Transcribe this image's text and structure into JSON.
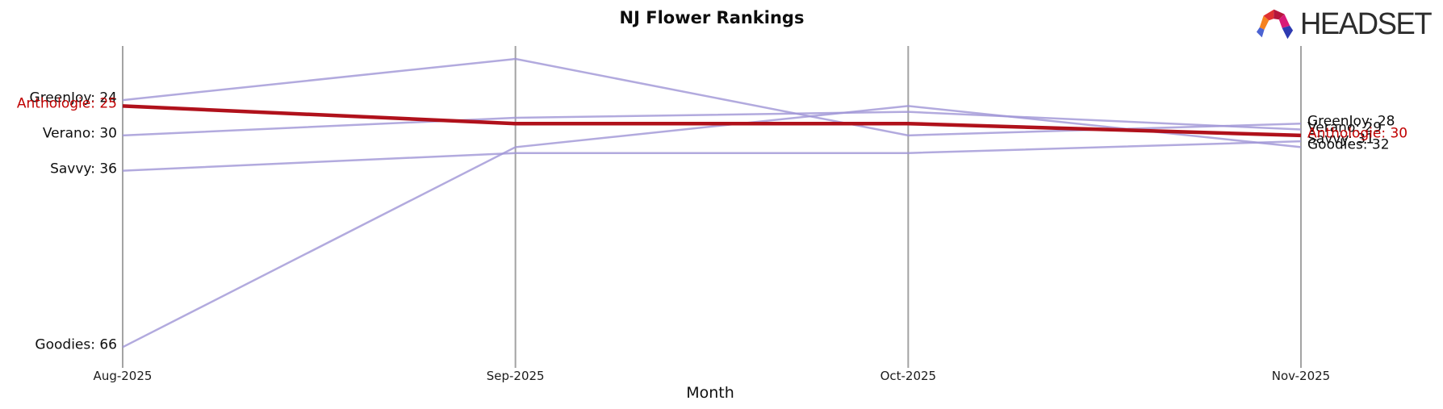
{
  "logo": {
    "text": "HEADSET",
    "icon": "headset-arch-icon",
    "icon_colors": {
      "orange": "#f5821f",
      "red": "#e03131",
      "crimson": "#b5173c",
      "magenta": "#d91a77",
      "blue_left": "#4c63d2",
      "blue_right": "#2e3ab1"
    }
  },
  "chart_data": {
    "type": "line",
    "title": "NJ Flower Rankings",
    "xlabel": "Month",
    "ylabel": "",
    "x": [
      "Aug-2025",
      "Sep-2025",
      "Oct-2025",
      "Nov-2025"
    ],
    "ylim": [
      14.8,
      68.7
    ],
    "y_inverted": true,
    "grid": "vertical-gridlines-only",
    "legend": "inline-endpoint-labels",
    "colors": {
      "gridline": "#a3a3a3",
      "line_default": "#9f95d6",
      "line_highlight": "#b0111b",
      "label_default": "#0e0e0e",
      "label_highlight": "#c00000"
    },
    "series": [
      {
        "name": "GreenJoy",
        "values": [
          24,
          17,
          30,
          28
        ],
        "highlight": false,
        "left_label": "GreenJoy: 24",
        "right_label": "GreenJoy: 28"
      },
      {
        "name": "Verano",
        "values": [
          30,
          27,
          26,
          29
        ],
        "highlight": false,
        "left_label": "Verano: 30",
        "right_label": "Verano: 29"
      },
      {
        "name": "Savvy",
        "values": [
          36,
          33,
          33,
          31
        ],
        "highlight": false,
        "left_label": "Savvy: 36",
        "right_label": "Savvy: 31"
      },
      {
        "name": "Goodies",
        "values": [
          66,
          32,
          25,
          32
        ],
        "highlight": false,
        "left_label": "Goodies: 66",
        "right_label": "Goodies: 32"
      },
      {
        "name": "Anthologie",
        "values": [
          25,
          28,
          28,
          30
        ],
        "highlight": true,
        "left_label": "Anthologie: 25",
        "right_label": "Anthologie: 30"
      }
    ]
  }
}
